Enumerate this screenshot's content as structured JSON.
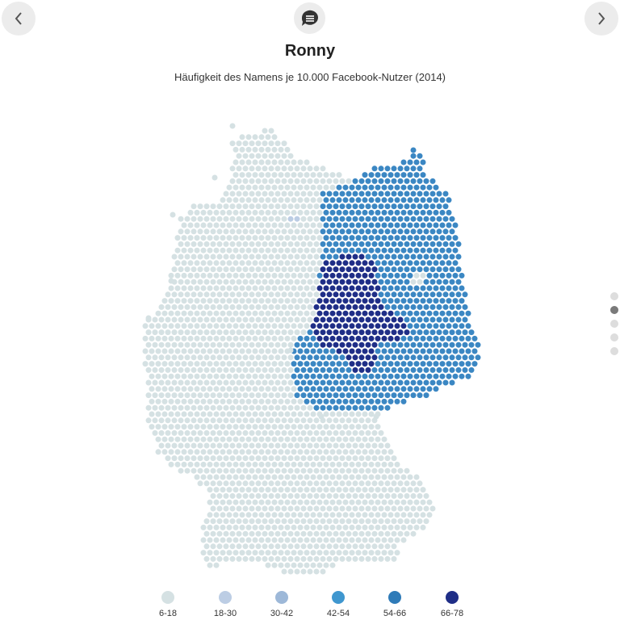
{
  "header": {
    "title": "Ronny",
    "subtitle": "Häufigkeit des Namens je 10.000 Facebook-Nutzer (2014)"
  },
  "navigation": {
    "prev_icon": "chevron-left-icon",
    "next_icon": "chevron-right-icon",
    "comment_icon": "comment-icon",
    "pages": 5,
    "active_page": 2
  },
  "colors": {
    "land": "#d5e1e3",
    "low_mid": "#bccde4",
    "blue": "#3b87c3",
    "dark": "#1f2e87",
    "button_bg": "#ececec",
    "dot_active": "#7a7a7a",
    "dot_inactive": "#dddddd"
  },
  "legend": [
    {
      "label": "6-18",
      "color": "#d5e1e3"
    },
    {
      "label": "18-30",
      "color": "#bccde4"
    },
    {
      "label": "30-42",
      "color": "#9db8d8"
    },
    {
      "label": "42-54",
      "color": "#3f97cf"
    },
    {
      "label": "54-66",
      "color": "#2f7bb8"
    },
    {
      "label": "66-78",
      "color": "#1f2e87"
    }
  ]
}
